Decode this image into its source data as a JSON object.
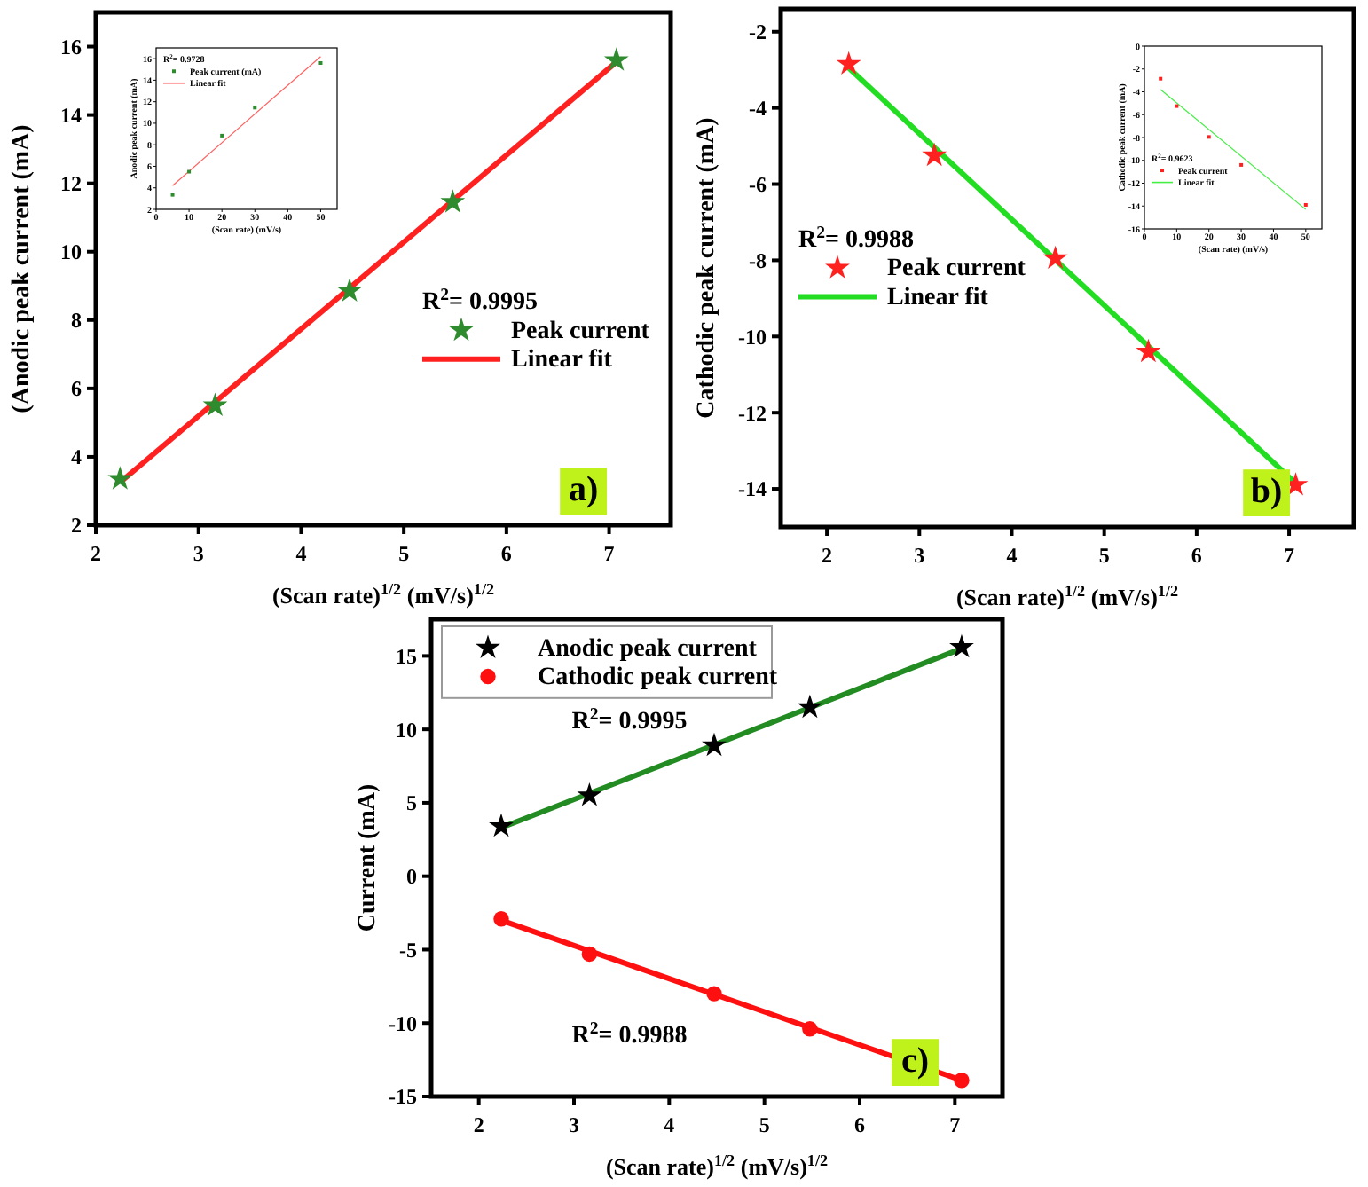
{
  "chart_data": [
    {
      "type": "scatter",
      "xlabel": "(Scan rate)$^{1/2}$ (mV/s)$^{1/2}$",
      "ylabel": "(Anodic peak current (mA)",
      "x": [
        2.236,
        3.162,
        4.472,
        5.477,
        7.071
      ],
      "xlim": [
        2,
        7.6
      ],
      "xticks": [
        2,
        3,
        4,
        5,
        6,
        7
      ],
      "ylim": [
        2,
        17
      ],
      "yticks": [
        2,
        4,
        6,
        8,
        10,
        12,
        14,
        16
      ],
      "legend": "right",
      "annotations": [
        "R$^{2}$= 0.9995",
        "a)"
      ],
      "series": [
        {
          "name": "Peak current",
          "color": "#2e8b2e",
          "marker": "star",
          "values": [
            3.35,
            5.5,
            8.85,
            11.45,
            15.6
          ]
        },
        {
          "name": "Linear fit",
          "type": "line",
          "color": "#ff2020",
          "line_style": "solid",
          "x": [
            2.236,
            7.071
          ],
          "values": [
            3.25,
            15.55
          ]
        }
      ]
    },
    {
      "type": "scatter",
      "xlabel": "(Scan rate) (mV/s)",
      "ylabel": "Anodic peak current (mA)",
      "x": [
        5,
        10,
        20,
        30,
        50
      ],
      "xlim": [
        0,
        55
      ],
      "xticks": [
        0,
        10,
        20,
        30,
        40,
        50
      ],
      "ylim": [
        2,
        17
      ],
      "yticks": [
        2,
        4,
        6,
        8,
        10,
        12,
        14,
        16
      ],
      "legend": "top left",
      "annotations": [
        "R$^{2}$= 0.9728"
      ],
      "series": [
        {
          "name": "Peak current (mA)",
          "color": "#2e8b2e",
          "marker": "square",
          "values": [
            3.35,
            5.5,
            8.85,
            11.45,
            15.6
          ]
        },
        {
          "name": "Linear fit",
          "type": "line",
          "color": "#ff6060",
          "line_style": "solid",
          "x": [
            5,
            50
          ],
          "values": [
            4.2,
            16.2
          ]
        }
      ]
    },
    {
      "type": "scatter",
      "xlabel": "(Scan rate)$^{1/2}$ (mV/s)$^{1/2}$",
      "ylabel": "Cathodic peak current (mA)",
      "x": [
        2.236,
        3.162,
        4.472,
        5.477,
        7.071
      ],
      "xlim": [
        1.5,
        7.7
      ],
      "xticks": [
        2,
        3,
        4,
        5,
        6,
        7
      ],
      "ylim": [
        -15,
        -1.4
      ],
      "yticks": [
        -14,
        -12,
        -10,
        -8,
        -6,
        -4,
        -2
      ],
      "legend": "left",
      "annotations": [
        "R$^{2}$= 0.9988",
        "b)"
      ],
      "series": [
        {
          "name": "Peak current",
          "color": "#ff2020",
          "marker": "star",
          "values": [
            -2.85,
            -5.25,
            -7.95,
            -10.4,
            -13.9
          ]
        },
        {
          "name": "Linear fit",
          "type": "line",
          "color": "#22dd22",
          "line_style": "solid",
          "x": [
            2.236,
            7.071
          ],
          "values": [
            -2.95,
            -13.85
          ]
        }
      ]
    },
    {
      "type": "scatter",
      "xlabel": "(Scan rate) (mV/s)",
      "ylabel": "Cathodic peak current (mA)",
      "x": [
        5,
        10,
        20,
        30,
        50
      ],
      "xlim": [
        0,
        55
      ],
      "xticks": [
        0,
        10,
        20,
        30,
        40,
        50
      ],
      "ylim": [
        -16,
        0
      ],
      "yticks": [
        -16,
        -14,
        -12,
        -10,
        -8,
        -6,
        -4,
        -2,
        0
      ],
      "legend": "left",
      "annotations": [
        "R$^{2}$= 0.9623"
      ],
      "series": [
        {
          "name": "Peak current",
          "color": "#ff2020",
          "marker": "square",
          "values": [
            -2.85,
            -5.25,
            -7.95,
            -10.4,
            -13.9
          ]
        },
        {
          "name": "Linear fit",
          "type": "line",
          "color": "#44ee44",
          "line_style": "solid",
          "x": [
            5,
            50
          ],
          "values": [
            -3.8,
            -14.3
          ]
        }
      ]
    },
    {
      "type": "scatter",
      "xlabel": "(Scan rate)$^{1/2}$ (mV/s)$^{1/2}$",
      "ylabel": "Current (mA)",
      "x": [
        2.236,
        3.162,
        4.472,
        5.477,
        7.071
      ],
      "xlim": [
        1.5,
        7.5
      ],
      "xticks": [
        2,
        3,
        4,
        5,
        6,
        7
      ],
      "ylim": [
        -15,
        17.5
      ],
      "yticks": [
        -15,
        -10,
        -5,
        0,
        5,
        10,
        15
      ],
      "legend": "top left",
      "annotations": [
        {
          "text": "R$^{2}$= 0.9995",
          "x": 3.162,
          "y": 5.5
        },
        {
          "text": "R$^{2}$= 0.9988",
          "x": 3.162,
          "y": -5.3
        },
        "c)"
      ],
      "series": [
        {
          "name": "Anodic peak current",
          "color": "#000000",
          "marker": "star",
          "values": [
            3.4,
            5.5,
            8.9,
            11.5,
            15.6
          ]
        },
        {
          "name": "Cathodic peak current",
          "color": "#ff1010",
          "marker": "circle",
          "values": [
            -2.9,
            -5.3,
            -8,
            -10.4,
            -13.9
          ]
        },
        {
          "type": "line",
          "color": "#228b22",
          "line_style": "solid",
          "x": [
            2.236,
            7.071
          ],
          "values": [
            3.3,
            15.5
          ]
        },
        {
          "type": "line",
          "color": "#ff1010",
          "line_style": "solid",
          "x": [
            2.236,
            7.071
          ],
          "values": [
            -3,
            -13.9
          ]
        }
      ]
    }
  ]
}
